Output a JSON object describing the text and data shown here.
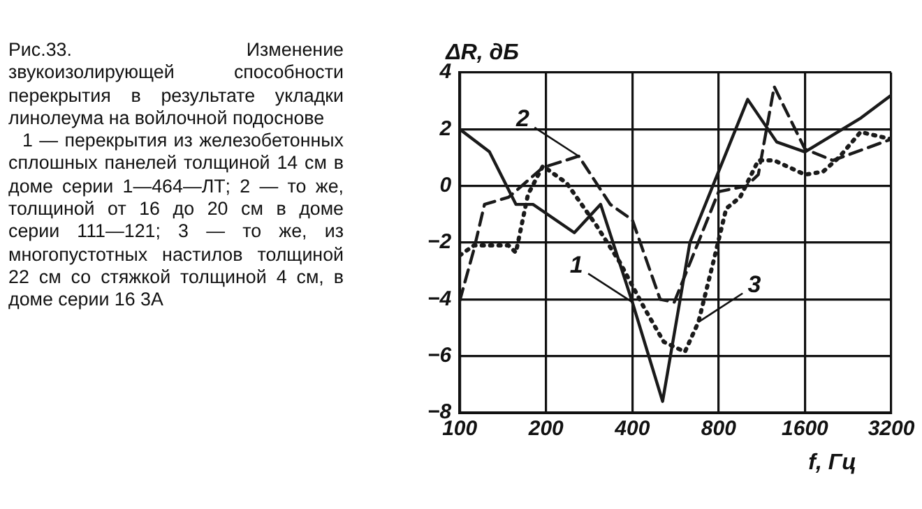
{
  "chart_data": {
    "type": "line",
    "title": "Рис.33. Изменение звукоизолирующей способности перекрытия в результате укладки линолеума на войлочной подоснове",
    "ylabel": "ΔR, дБ",
    "xlabel": "f, Гц",
    "log": "x",
    "xlim": [
      100,
      3200
    ],
    "xticks": [
      100,
      200,
      400,
      800,
      1600,
      3200
    ],
    "ylim": [
      -8,
      4
    ],
    "yticks": [
      -8,
      -6,
      -4,
      -2,
      0,
      2,
      4
    ],
    "grid": true,
    "legend": false,
    "marker": "none",
    "annotations": [
      "1 — перекрытия из железобетонных сплошных панелей толщиной 14 см в доме серии 1—464—ЛТ; 2 — то же, толщиной от 16 до 20 см в доме серии 111—121; 3 — то же, из многопустотных настилов толщиной 22 см со стяжкой толщиной 4 см, в доме серии 16 3А",
      {
        "text": "1",
        "x": 400,
        "y": -4.1
      },
      {
        "text": "2",
        "x": 260,
        "y": 1.05
      },
      {
        "text": "3",
        "x": 680,
        "y": -4.8
      }
    ],
    "series": [
      {
        "color": "#1a1a1a",
        "line_style": "solid",
        "x": [
          100,
          127,
          157,
          180,
          251,
          310,
          400,
          510,
          635,
          1010,
          1275,
          1600,
          2510,
          3200
        ],
        "values": [
          2.0,
          1.2,
          -0.65,
          -0.65,
          -1.65,
          -0.65,
          -4.1,
          -7.6,
          -2.0,
          3.05,
          1.55,
          1.2,
          2.4,
          3.2
        ]
      },
      {
        "color": "#1a1a1a",
        "line_style": "dashed",
        "x": [
          100,
          112,
          122,
          148,
          195,
          260,
          335,
          400,
          500,
          560,
          800,
          1000,
          1100,
          1250,
          1600,
          2000,
          3200
        ],
        "values": [
          -4.05,
          -2.25,
          -0.65,
          -0.4,
          0.65,
          1.05,
          -0.65,
          -1.2,
          -4.0,
          -4.1,
          -0.2,
          0,
          0.4,
          3.5,
          1.3,
          0.9,
          1.65
        ]
      },
      {
        "color": "#1a1a1a",
        "line_style": "dotted",
        "x": [
          100,
          112,
          148,
          157,
          173,
          195,
          236,
          300,
          362,
          440,
          515,
          610,
          680,
          770,
          850,
          950,
          1100,
          1250,
          1600,
          1850,
          2100,
          2500,
          3200
        ],
        "values": [
          -2.45,
          -2.1,
          -2.1,
          -2.35,
          -0.3,
          0.7,
          0.1,
          -1.4,
          -2.7,
          -4.3,
          -5.5,
          -5.85,
          -4.8,
          -2.6,
          -0.8,
          -0.4,
          0.9,
          0.9,
          0.4,
          0.5,
          1.0,
          1.9,
          1.65
        ]
      }
    ]
  }
}
